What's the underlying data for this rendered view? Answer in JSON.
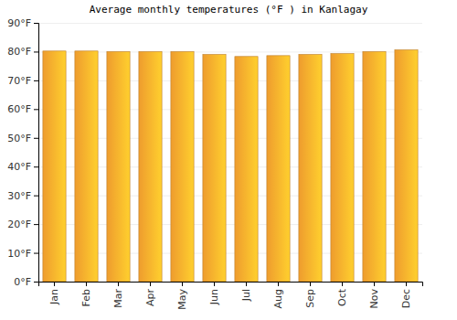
{
  "chart_data": {
    "type": "bar",
    "title": "Average monthly temperatures (°F ) in Kanlagay",
    "categories": [
      "Jan",
      "Feb",
      "Mar",
      "Apr",
      "May",
      "Jun",
      "Jul",
      "Aug",
      "Sep",
      "Oct",
      "Nov",
      "Dec"
    ],
    "values": [
      80.2,
      80.2,
      80.0,
      80.0,
      80.0,
      79.0,
      78.3,
      78.6,
      79.0,
      79.3,
      80.0,
      80.6
    ],
    "color": "#fba531",
    "ylim": [
      0,
      90
    ],
    "yticks": [
      {
        "value": 0,
        "label": "0°F"
      },
      {
        "value": 10,
        "label": "10°F"
      },
      {
        "value": 20,
        "label": "20°F"
      },
      {
        "value": 30,
        "label": "30°F"
      },
      {
        "value": 40,
        "label": "40°F"
      },
      {
        "value": 50,
        "label": "50°F"
      },
      {
        "value": 60,
        "label": "60°F"
      },
      {
        "value": 70,
        "label": "70°F"
      },
      {
        "value": 80,
        "label": "80°F"
      },
      {
        "value": 90,
        "label": "90°F"
      }
    ],
    "grid": true
  }
}
